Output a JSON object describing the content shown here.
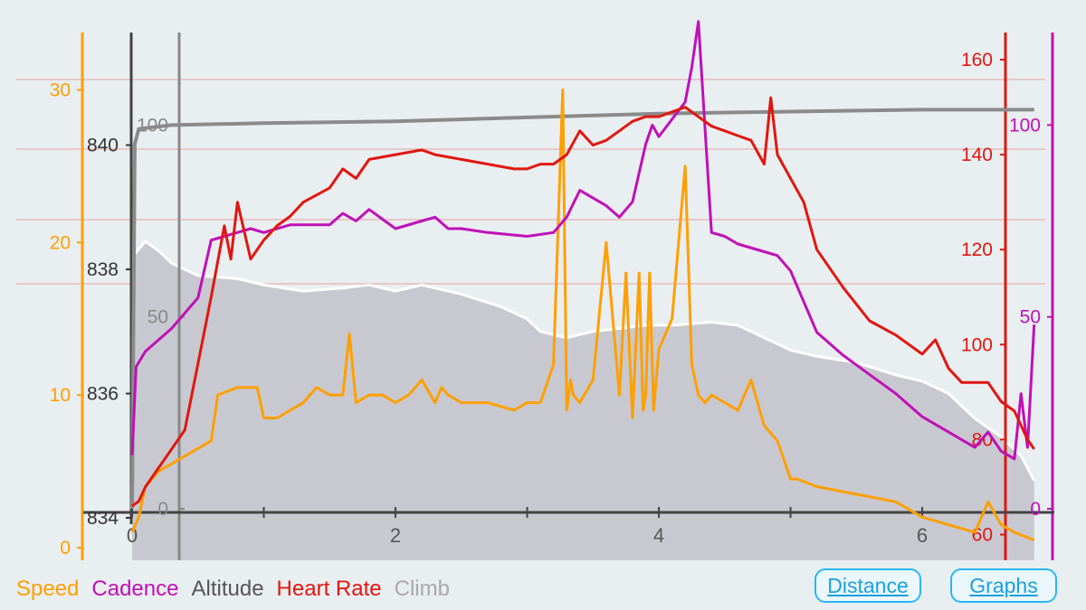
{
  "chart_data": {
    "type": "line",
    "x": {
      "ticks": [
        "0",
        "2",
        "4",
        "6"
      ],
      "range": [
        0,
        6.9
      ]
    },
    "axes": {
      "speed": {
        "ticks": [
          "0",
          "10",
          "20",
          "30"
        ],
        "range": [
          0,
          35
        ],
        "color": "#ff9f00"
      },
      "altitude": {
        "ticks": [
          "834",
          "836",
          "838",
          "840"
        ],
        "range": [
          834,
          841.9
        ],
        "color": "#333333"
      },
      "climb": {
        "ticks": [
          "0",
          "50",
          "100"
        ],
        "range": [
          0,
          126
        ],
        "color": "#888888"
      },
      "heartrate": {
        "ticks": [
          "60",
          "80",
          "100",
          "120",
          "140",
          "160"
        ],
        "range": [
          58,
          164
        ],
        "color": "#e0170f"
      },
      "cadence": {
        "ticks": [
          "0",
          "50",
          "100"
        ],
        "range": [
          0,
          126
        ],
        "color": "#c010b8"
      }
    },
    "series": [
      {
        "name": "Altitude",
        "color": "#c8c9d0",
        "x": [
          0,
          0.1,
          0.2,
          0.3,
          0.5,
          0.8,
          1.0,
          1.3,
          1.6,
          1.8,
          2.0,
          2.2,
          2.5,
          2.8,
          3.0,
          3.1,
          3.3,
          3.5,
          3.7,
          3.9,
          4.1,
          4.4,
          4.6,
          4.8,
          5.0,
          5.2,
          5.5,
          5.8,
          6.0,
          6.2,
          6.4,
          6.6,
          6.75,
          6.85
        ],
        "y": [
          838.2,
          838.45,
          838.3,
          838.1,
          837.9,
          837.85,
          837.75,
          837.65,
          837.7,
          837.75,
          837.65,
          837.75,
          837.6,
          837.4,
          837.2,
          837.0,
          836.9,
          837.0,
          837.05,
          837.1,
          837.1,
          837.15,
          837.1,
          836.9,
          836.7,
          836.6,
          836.5,
          836.3,
          836.2,
          836.0,
          835.6,
          835.3,
          835.0,
          834.6
        ]
      },
      {
        "name": "Climb",
        "color": "#8a8a8a",
        "x": [
          0,
          0.02,
          0.05,
          0.3,
          1.0,
          2.0,
          3.0,
          4.0,
          5.0,
          6.0,
          6.85
        ],
        "y": [
          0,
          95,
          99,
          100,
          100.5,
          101,
          102,
          103,
          103.5,
          104,
          104
        ]
      },
      {
        "name": "Speed",
        "color": "#ff9f00",
        "x": [
          0,
          0.05,
          0.1,
          0.2,
          0.4,
          0.6,
          0.65,
          0.8,
          0.95,
          1.0,
          1.1,
          1.2,
          1.3,
          1.4,
          1.5,
          1.6,
          1.65,
          1.7,
          1.8,
          1.9,
          2.0,
          2.1,
          2.2,
          2.3,
          2.35,
          2.4,
          2.5,
          2.7,
          2.9,
          3.0,
          3.1,
          3.2,
          3.27,
          3.3,
          3.33,
          3.35,
          3.4,
          3.5,
          3.6,
          3.7,
          3.75,
          3.8,
          3.85,
          3.88,
          3.9,
          3.93,
          3.96,
          4.0,
          4.1,
          4.2,
          4.25,
          4.3,
          4.35,
          4.4,
          4.5,
          4.6,
          4.7,
          4.8,
          4.9,
          5.0,
          5.05,
          5.2,
          5.5,
          5.8,
          6.0,
          6.2,
          6.4,
          6.5,
          6.6,
          6.7,
          6.85
        ],
        "y": [
          1,
          2,
          4,
          5,
          6,
          7,
          10,
          10.5,
          10.5,
          8.5,
          8.5,
          9,
          9.5,
          10.5,
          10,
          10,
          14,
          9.5,
          10,
          10,
          9.5,
          10,
          11,
          9.5,
          10.5,
          10,
          9.5,
          9.5,
          9,
          9.5,
          9.5,
          12,
          30,
          9,
          11,
          10,
          9.5,
          11,
          20,
          10,
          18,
          8.5,
          18,
          9,
          10,
          18,
          9,
          13,
          15,
          25,
          12,
          10,
          9.5,
          10,
          9.5,
          9,
          11,
          8,
          7,
          4.5,
          4.5,
          4,
          3.5,
          3,
          2,
          1.5,
          1,
          3,
          1.5,
          1,
          0.5
        ]
      },
      {
        "name": "Cadence",
        "color": "#c010b8",
        "x": [
          0,
          0.03,
          0.1,
          0.3,
          0.5,
          0.6,
          0.7,
          0.9,
          1.0,
          1.2,
          1.5,
          1.6,
          1.7,
          1.8,
          2.0,
          2.2,
          2.3,
          2.4,
          2.5,
          2.7,
          3.0,
          3.2,
          3.3,
          3.4,
          3.6,
          3.7,
          3.8,
          3.9,
          3.95,
          4.0,
          4.2,
          4.25,
          4.3,
          4.4,
          4.5,
          4.6,
          4.8,
          4.9,
          5.0,
          5.2,
          5.4,
          5.6,
          5.8,
          6.0,
          6.2,
          6.4,
          6.5,
          6.6,
          6.7,
          6.75,
          6.8,
          6.85
        ],
        "y": [
          14,
          37,
          41,
          47,
          55,
          70,
          71,
          73,
          72,
          74,
          74,
          77,
          75,
          78,
          73,
          75,
          76,
          73,
          73,
          72,
          71,
          72,
          76,
          83,
          79,
          76,
          80,
          95,
          100,
          97,
          106,
          115,
          127,
          72,
          71,
          69,
          67,
          66,
          62,
          46,
          40,
          35,
          30,
          24,
          20,
          16,
          20,
          15,
          13,
          30,
          16,
          48
        ]
      },
      {
        "name": "Heart Rate",
        "color": "#e0170f",
        "x": [
          0,
          0.05,
          0.1,
          0.2,
          0.3,
          0.4,
          0.5,
          0.6,
          0.7,
          0.75,
          0.8,
          0.9,
          1.0,
          1.1,
          1.2,
          1.3,
          1.5,
          1.6,
          1.7,
          1.8,
          2.0,
          2.2,
          2.3,
          2.5,
          2.7,
          2.9,
          3.0,
          3.1,
          3.2,
          3.3,
          3.4,
          3.5,
          3.6,
          3.7,
          3.8,
          3.9,
          4.0,
          4.1,
          4.2,
          4.3,
          4.4,
          4.5,
          4.6,
          4.7,
          4.8,
          4.85,
          4.9,
          5.0,
          5.1,
          5.2,
          5.4,
          5.6,
          5.8,
          6.0,
          6.1,
          6.2,
          6.3,
          6.5,
          6.6,
          6.7,
          6.8,
          6.85
        ],
        "y": [
          66,
          67,
          70,
          74,
          78,
          82,
          96,
          110,
          125,
          118,
          130,
          118,
          122,
          125,
          127,
          130,
          133,
          137,
          135,
          139,
          140,
          141,
          140,
          139,
          138,
          137,
          137,
          138,
          138,
          140,
          145,
          142,
          143,
          145,
          147,
          148,
          148,
          149,
          150,
          148,
          146,
          145,
          144,
          143,
          138,
          152,
          140,
          135,
          130,
          120,
          112,
          105,
          102,
          98,
          101,
          95,
          92,
          92,
          88,
          86,
          80,
          78
        ]
      }
    ]
  },
  "legend": [
    {
      "label": "Speed",
      "color": "#ff9f00"
    },
    {
      "label": "Cadence",
      "color": "#c010b8"
    },
    {
      "label": "Altitude",
      "color": "#555555"
    },
    {
      "label": "Heart Rate",
      "color": "#e0170f"
    },
    {
      "label": "Climb",
      "color": "#a8a8a8"
    }
  ],
  "buttons": {
    "distance": "Distance",
    "graphs": "Graphs"
  },
  "icons": {
    "note": "no icons"
  }
}
